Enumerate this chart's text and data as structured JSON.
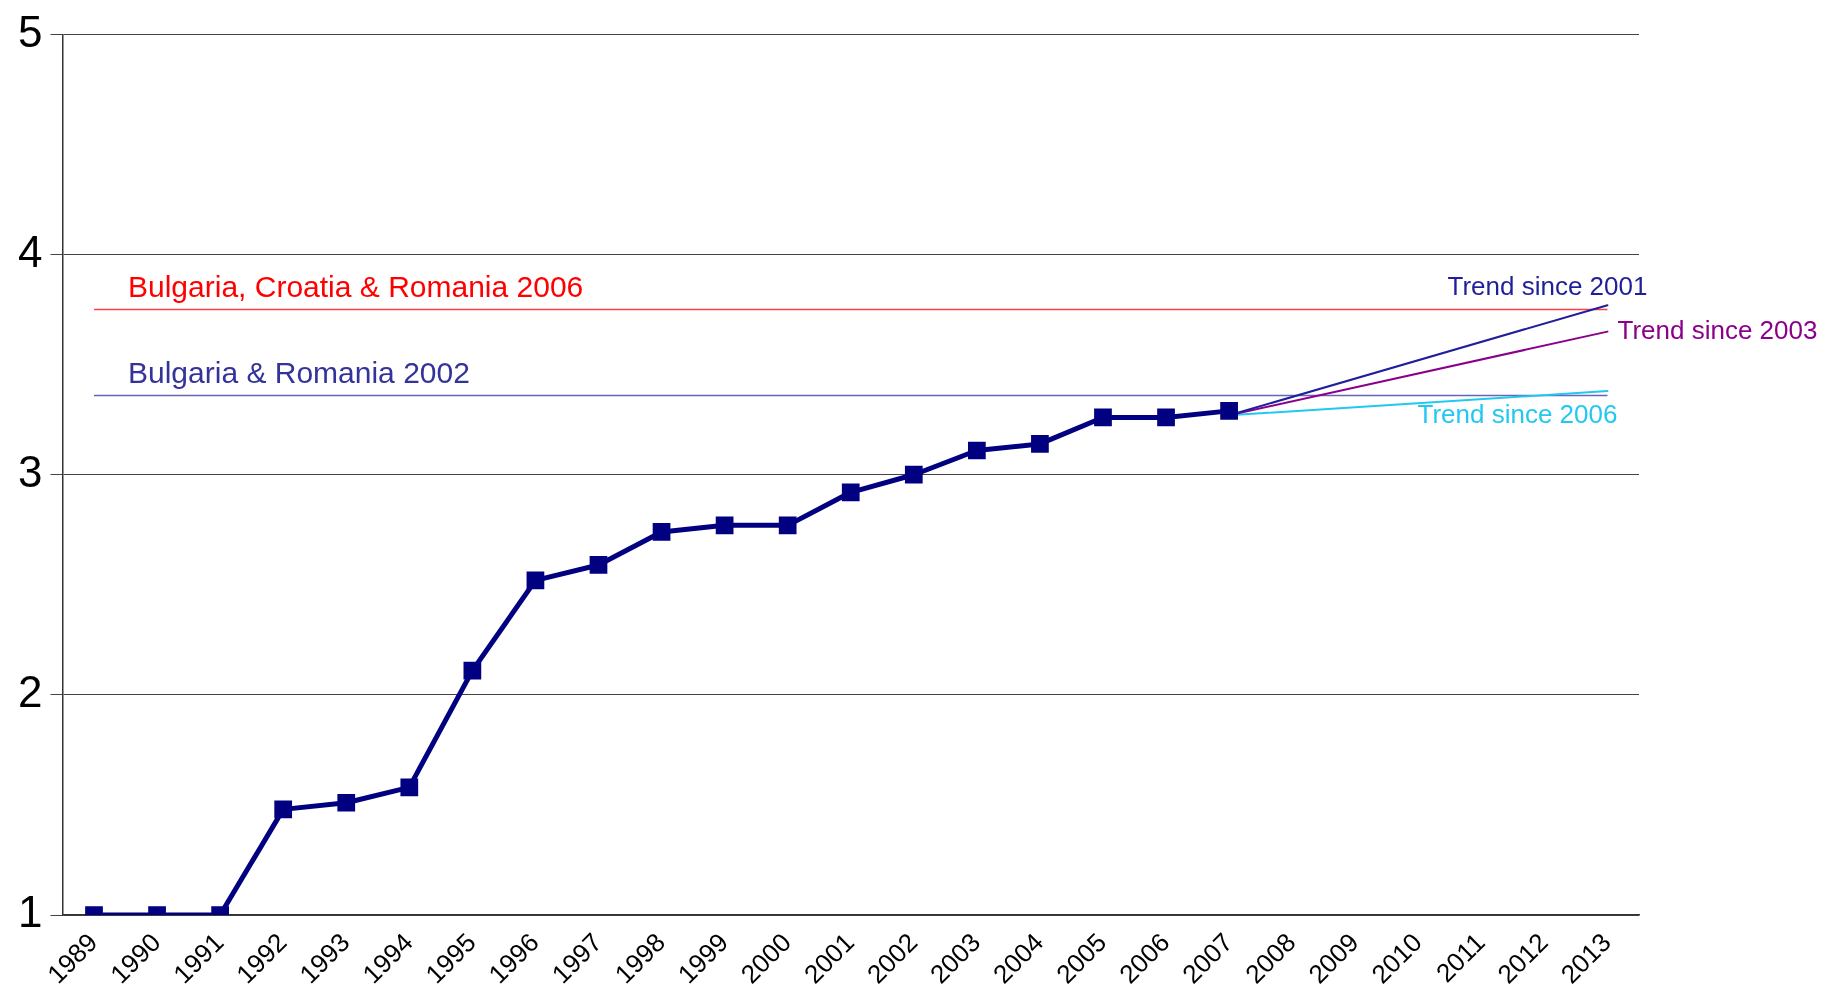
{
  "chart_data": {
    "type": "line",
    "categories": [
      "1989",
      "1990",
      "1991",
      "1992",
      "1993",
      "1994",
      "1995",
      "1996",
      "1997",
      "1998",
      "1999",
      "2000",
      "2001",
      "2002",
      "2003",
      "2004",
      "2005",
      "2006",
      "2007",
      "2008",
      "2009",
      "2010",
      "2011",
      "2012",
      "2013"
    ],
    "series": [
      {
        "color": "#000080",
        "marker": "square",
        "values": [
          1,
          1,
          1,
          1.48,
          1.51,
          1.58,
          2.11,
          2.52,
          2.59,
          2.74,
          2.77,
          2.77,
          2.92,
          3.0,
          3.11,
          3.14,
          3.26,
          3.26,
          3.29,
          null,
          null,
          null,
          null,
          null,
          null
        ]
      },
      {
        "name": "Trend since 2001",
        "type": "line",
        "color": "#1f1f99",
        "marker": "none",
        "values": [
          null,
          null,
          null,
          null,
          null,
          null,
          null,
          null,
          null,
          null,
          null,
          null,
          null,
          null,
          null,
          null,
          null,
          null,
          3.27,
          null,
          null,
          null,
          null,
          null,
          3.77
        ]
      },
      {
        "name": "Trend since 2003",
        "type": "line",
        "color": "#8b008b",
        "marker": "none",
        "values": [
          null,
          null,
          null,
          null,
          null,
          null,
          null,
          null,
          null,
          null,
          null,
          null,
          null,
          null,
          null,
          null,
          null,
          null,
          3.27,
          null,
          null,
          null,
          null,
          null,
          3.65
        ]
      },
      {
        "name": "Trend since 2006",
        "type": "line",
        "color": "#22c8f0",
        "marker": "none",
        "values": [
          null,
          null,
          null,
          null,
          null,
          null,
          null,
          null,
          null,
          null,
          null,
          null,
          null,
          null,
          null,
          null,
          null,
          null,
          3.27,
          null,
          null,
          null,
          null,
          null,
          3.38
        ]
      }
    ],
    "ylim": [
      1,
      5
    ],
    "yticks": [
      1,
      2,
      3,
      4,
      5
    ],
    "grid": "y",
    "legend": false,
    "ref_lines": [
      {
        "axis": "y",
        "value": 3.75,
        "label": "Bulgaria, Croatia & Romania 2006",
        "color": "#ff0000"
      },
      {
        "axis": "y",
        "value": 3.36,
        "label": "Bulgaria & Romania 2002",
        "color": "#333399"
      }
    ]
  }
}
